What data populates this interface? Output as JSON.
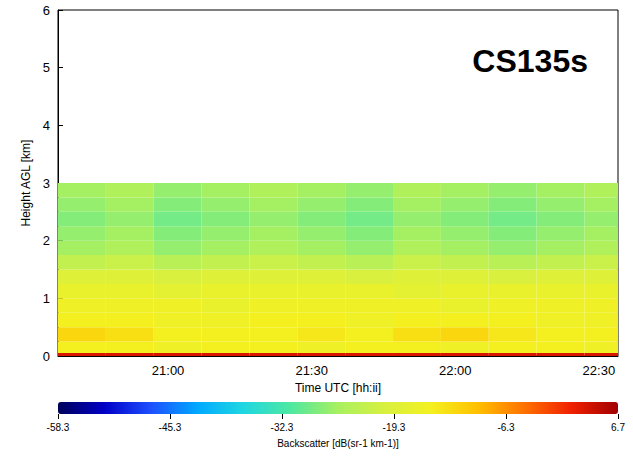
{
  "chart_data": {
    "type": "heatmap",
    "annotation": "CS135s",
    "x_label": "Time UTC [hh:ii]",
    "y_label": "Height AGL [km]",
    "x_bins": [
      1237,
      1247,
      1257,
      1267,
      1277,
      1287,
      1297,
      1307,
      1317,
      1327,
      1337,
      1347,
      1354
    ],
    "y_bins": [
      0,
      0.05,
      0.25,
      0.5,
      0.75,
      1.0,
      1.25,
      1.5,
      1.75,
      2.0,
      2.25,
      2.5,
      2.75,
      3.0
    ],
    "values": [
      [
        3,
        3,
        3,
        3,
        3,
        3,
        3,
        3,
        3,
        3,
        3,
        3
      ],
      [
        -15,
        -15,
        -16,
        -15,
        -15,
        -16,
        -15,
        -15,
        -16,
        -15,
        -15,
        -16
      ],
      [
        -12,
        -13,
        -15,
        -15,
        -15,
        -14,
        -15,
        -13,
        -12,
        -14,
        -15,
        -15
      ],
      [
        -15,
        -15,
        -16,
        -16,
        -15,
        -15,
        -16,
        -15,
        -15,
        -15,
        -16,
        -16
      ],
      [
        -16,
        -16,
        -16,
        -17,
        -16,
        -16,
        -16,
        -16,
        -17,
        -16,
        -16,
        -16
      ],
      [
        -17,
        -17,
        -18,
        -17,
        -17,
        -17,
        -17,
        -18,
        -17,
        -17,
        -17,
        -17
      ],
      [
        -19,
        -19,
        -20,
        -19,
        -19,
        -19,
        -20,
        -19,
        -19,
        -20,
        -19,
        -19
      ],
      [
        -23,
        -22,
        -24,
        -23,
        -22,
        -23,
        -24,
        -22,
        -23,
        -24,
        -23,
        -22
      ],
      [
        -26,
        -25,
        -27,
        -26,
        -25,
        -26,
        -27,
        -25,
        -26,
        -27,
        -26,
        -25
      ],
      [
        -27,
        -26,
        -28,
        -27,
        -26,
        -27,
        -28,
        -26,
        -27,
        -28,
        -27,
        -26
      ],
      [
        -28,
        -27,
        -29,
        -28,
        -27,
        -28,
        -29,
        -27,
        -28,
        -29,
        -28,
        -27
      ],
      [
        -27,
        -26,
        -28,
        -27,
        -26,
        -27,
        -28,
        -26,
        -27,
        -28,
        -27,
        -26
      ],
      [
        -26,
        -25,
        -27,
        -26,
        -25,
        -26,
        -27,
        -25,
        -26,
        -27,
        -26,
        -25
      ]
    ],
    "xlim": [
      1237,
      1354
    ],
    "xticks": [
      {
        "value": 1260,
        "label": "21:00"
      },
      {
        "value": 1290,
        "label": "21:30"
      },
      {
        "value": 1320,
        "label": "22:00"
      },
      {
        "value": 1350,
        "label": "22:30"
      }
    ],
    "ylim": [
      0,
      6
    ],
    "yticks": [
      0,
      1,
      2,
      3,
      4,
      5,
      6
    ],
    "colorbar": {
      "label": "Backscatter [dB(sr-1 km-1)]",
      "range": [
        -58.3,
        6.7
      ],
      "ticks": [
        -58.3,
        -45.3,
        -32.3,
        -19.3,
        -6.3,
        6.7
      ]
    }
  }
}
